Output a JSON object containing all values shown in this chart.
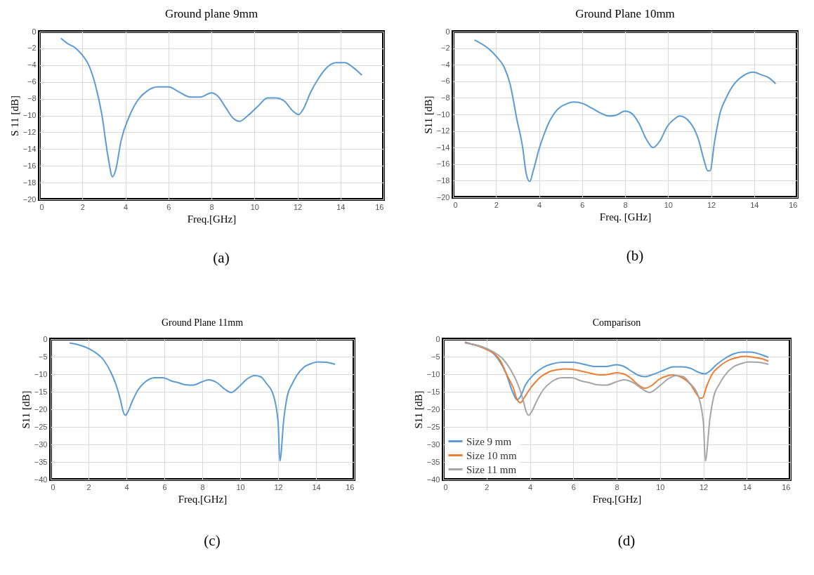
{
  "chart_data": [
    {
      "type": "line",
      "title": "Ground plane 9mm",
      "xlabel": "Freq.[GHz]",
      "ylabel": "S 11 [dB]",
      "xlim": [
        0,
        16
      ],
      "xticks": [
        0,
        2,
        4,
        6,
        8,
        10,
        12,
        14,
        16
      ],
      "ylim": [
        -20,
        0
      ],
      "yticks": [
        0,
        -2,
        -4,
        -6,
        -8,
        -10,
        -12,
        -14,
        -16,
        -18,
        -20
      ],
      "grid": true,
      "annotations": [
        "(a)"
      ],
      "series": [
        {
          "color": "#5b9bd5",
          "x": [
            1,
            1.3,
            1.7,
            2.0,
            2.3,
            2.6,
            2.9,
            3.2,
            3.4,
            3.55,
            3.8,
            4.2,
            4.6,
            5.0,
            5.5,
            6.0,
            6.5,
            7.0,
            7.5,
            8.0,
            8.3,
            8.7,
            9.0,
            9.3,
            9.7,
            10.2,
            10.6,
            11.0,
            11.4,
            11.8,
            12.05,
            12.3,
            12.6,
            13.0,
            13.4,
            13.8,
            14.2,
            14.6,
            15.0
          ],
          "values": [
            -0.8,
            -1.4,
            -2.0,
            -2.8,
            -4.0,
            -6.3,
            -9.8,
            -15,
            -17.3,
            -16.5,
            -13,
            -10,
            -8.1,
            -7.1,
            -6.6,
            -6.6,
            -7.2,
            -7.8,
            -7.8,
            -7.3,
            -7.7,
            -9.2,
            -10.3,
            -10.7,
            -10.0,
            -8.8,
            -7.9,
            -7.9,
            -8.3,
            -9.5,
            -9.9,
            -9.1,
            -7.3,
            -5.5,
            -4.2,
            -3.7,
            -3.7,
            -4.3,
            -5.2
          ]
        }
      ]
    },
    {
      "type": "line",
      "title": "Ground Plane 10mm",
      "xlabel": "Freq. [GHz]",
      "ylabel": "S11 [dB]",
      "xlim": [
        0,
        16
      ],
      "xticks": [
        0,
        2,
        4,
        6,
        8,
        10,
        12,
        14,
        16
      ],
      "ylim": [
        -20,
        0
      ],
      "yticks": [
        0,
        -2,
        -4,
        -6,
        -8,
        -10,
        -12,
        -14,
        -16,
        -18,
        -20
      ],
      "grid": true,
      "annotations": [
        "(b)"
      ],
      "series": [
        {
          "color": "#5b9bd5",
          "x": [
            1.0,
            1.67,
            2.05,
            2.38,
            2.65,
            2.97,
            3.24,
            3.4,
            3.57,
            3.73,
            4.0,
            4.22,
            4.49,
            4.86,
            5.3,
            5.62,
            6.05,
            6.49,
            6.92,
            7.24,
            7.57,
            8.0,
            8.32,
            8.65,
            8.97,
            9.3,
            9.62,
            9.95,
            10.27,
            10.54,
            11.03,
            11.41,
            11.68,
            11.84,
            11.95,
            12.16,
            12.43,
            12.7,
            13.08,
            13.51,
            13.95,
            14.32,
            14.7,
            15.0
          ],
          "values": [
            -1.0,
            -2.1,
            -3.1,
            -4.3,
            -6.3,
            -10.6,
            -14,
            -17.1,
            -18.1,
            -16.8,
            -14.2,
            -12.5,
            -10.8,
            -9.4,
            -8.7,
            -8.5,
            -8.7,
            -9.3,
            -9.9,
            -10.2,
            -10.1,
            -9.6,
            -9.9,
            -11.1,
            -12.9,
            -14.0,
            -13.2,
            -11.5,
            -10.6,
            -10.2,
            -11.0,
            -13.0,
            -15.6,
            -16.8,
            -16.8,
            -13.3,
            -9.7,
            -8.0,
            -6.3,
            -5.3,
            -4.9,
            -5.2,
            -5.6,
            -6.3
          ]
        }
      ]
    },
    {
      "type": "line",
      "title": "Ground Plane 11mm",
      "xlabel": "Freq.[GHz]",
      "ylabel": "S11 [dB]",
      "xlim": [
        0,
        16
      ],
      "xticks": [
        0,
        2,
        4,
        6,
        8,
        10,
        12,
        14,
        16
      ],
      "ylim": [
        -40,
        0
      ],
      "yticks": [
        0,
        -5,
        -10,
        -15,
        -20,
        -25,
        -30,
        -35,
        -40
      ],
      "grid": true,
      "annotations": [
        "(c)"
      ],
      "series": [
        {
          "color": "#5b9bd5",
          "x": [
            1.0,
            1.52,
            2.27,
            2.76,
            3.2,
            3.44,
            3.69,
            3.82,
            3.94,
            4.07,
            4.31,
            4.62,
            4.99,
            5.49,
            5.92,
            6.36,
            6.73,
            7.1,
            7.53,
            7.97,
            8.34,
            8.77,
            9.2,
            9.52,
            9.95,
            10.38,
            10.76,
            11.07,
            11.38,
            11.75,
            12.0,
            12.09,
            12.3,
            12.48,
            12.73,
            12.98,
            13.36,
            13.73,
            14.1,
            14.54,
            15.0
          ],
          "values": [
            -1.1,
            -1.7,
            -3.5,
            -5.7,
            -9.7,
            -12.8,
            -17.4,
            -20.5,
            -21.7,
            -20.8,
            -17.7,
            -14.4,
            -12.2,
            -11.0,
            -11.0,
            -11.9,
            -12.4,
            -13.0,
            -13.1,
            -12.2,
            -11.6,
            -12.4,
            -14.3,
            -15.2,
            -13.5,
            -11.3,
            -10.4,
            -10.7,
            -12.6,
            -16.0,
            -23.7,
            -34.7,
            -22.8,
            -16.3,
            -12.9,
            -10.4,
            -8.0,
            -7.0,
            -6.5,
            -6.6,
            -7.2
          ]
        }
      ]
    },
    {
      "type": "line",
      "title": "Comparison",
      "xlabel": "Freq.[GHz]",
      "ylabel": "S11 [dB]",
      "xlim": [
        0,
        16
      ],
      "xticks": [
        0,
        2,
        4,
        6,
        8,
        10,
        12,
        14,
        16
      ],
      "ylim": [
        -40,
        0
      ],
      "yticks": [
        0,
        -5,
        -10,
        -15,
        -20,
        -25,
        -30,
        -35,
        -40
      ],
      "grid": true,
      "legend": "bottom left",
      "annotations": [
        "(d)"
      ],
      "series": [
        {
          "name": "Size 9 mm",
          "color": "#5b9bd5",
          "x": [
            1,
            1.3,
            1.7,
            2.0,
            2.3,
            2.6,
            2.9,
            3.2,
            3.4,
            3.55,
            3.8,
            4.2,
            4.6,
            5.0,
            5.5,
            6.0,
            6.5,
            7.0,
            7.5,
            8.0,
            8.3,
            8.7,
            9.0,
            9.3,
            9.7,
            10.2,
            10.6,
            11.0,
            11.4,
            11.8,
            12.05,
            12.3,
            12.6,
            13.0,
            13.4,
            13.8,
            14.2,
            14.6,
            15.0
          ],
          "values": [
            -0.8,
            -1.4,
            -2.0,
            -2.8,
            -4.0,
            -6.3,
            -9.8,
            -15,
            -17.3,
            -16.5,
            -13,
            -10,
            -8.1,
            -7.1,
            -6.6,
            -6.6,
            -7.2,
            -7.8,
            -7.8,
            -7.3,
            -7.7,
            -9.2,
            -10.3,
            -10.7,
            -10.0,
            -8.8,
            -7.9,
            -7.9,
            -8.3,
            -9.5,
            -9.9,
            -9.1,
            -7.3,
            -5.5,
            -4.2,
            -3.7,
            -3.7,
            -4.3,
            -5.2
          ]
        },
        {
          "name": "Size 10 mm",
          "color": "#ed7d31",
          "x": [
            1.0,
            1.67,
            2.05,
            2.38,
            2.65,
            2.97,
            3.24,
            3.4,
            3.57,
            3.73,
            4.0,
            4.22,
            4.49,
            4.86,
            5.3,
            5.62,
            6.05,
            6.49,
            6.92,
            7.24,
            7.57,
            8.0,
            8.32,
            8.65,
            8.97,
            9.3,
            9.62,
            9.95,
            10.27,
            10.54,
            11.03,
            11.41,
            11.68,
            11.84,
            11.95,
            12.16,
            12.43,
            12.7,
            13.08,
            13.51,
            13.95,
            14.32,
            14.7,
            15.0
          ],
          "values": [
            -1.0,
            -2.1,
            -3.1,
            -4.3,
            -6.3,
            -10.6,
            -14,
            -17.1,
            -18.1,
            -16.8,
            -14.2,
            -12.5,
            -10.8,
            -9.4,
            -8.7,
            -8.5,
            -8.7,
            -9.3,
            -9.9,
            -10.2,
            -10.1,
            -9.6,
            -9.9,
            -11.1,
            -12.9,
            -14.0,
            -13.2,
            -11.5,
            -10.6,
            -10.2,
            -11.0,
            -13.0,
            -15.6,
            -16.8,
            -16.8,
            -13.3,
            -9.7,
            -8.0,
            -6.3,
            -5.3,
            -4.9,
            -5.2,
            -5.6,
            -6.3
          ]
        },
        {
          "name": "Size 11 mm",
          "color": "#a5a5a5",
          "x": [
            1.0,
            1.52,
            2.27,
            2.76,
            3.2,
            3.44,
            3.69,
            3.82,
            3.94,
            4.07,
            4.31,
            4.62,
            4.99,
            5.49,
            5.92,
            6.36,
            6.73,
            7.1,
            7.53,
            7.97,
            8.34,
            8.77,
            9.2,
            9.52,
            9.95,
            10.38,
            10.76,
            11.07,
            11.38,
            11.75,
            12.0,
            12.09,
            12.3,
            12.48,
            12.73,
            12.98,
            13.36,
            13.73,
            14.1,
            14.54,
            15.0
          ],
          "values": [
            -1.1,
            -1.7,
            -3.5,
            -5.7,
            -9.7,
            -12.8,
            -17.4,
            -20.5,
            -21.7,
            -20.8,
            -17.7,
            -14.4,
            -12.2,
            -11.0,
            -11.0,
            -11.9,
            -12.4,
            -13.0,
            -13.1,
            -12.2,
            -11.6,
            -12.4,
            -14.3,
            -15.2,
            -13.5,
            -11.3,
            -10.4,
            -10.7,
            -12.6,
            -16.0,
            -23.7,
            -34.7,
            -22.8,
            -16.3,
            -12.9,
            -10.4,
            -8.0,
            -7.0,
            -6.5,
            -6.6,
            -7.2
          ]
        }
      ]
    }
  ]
}
